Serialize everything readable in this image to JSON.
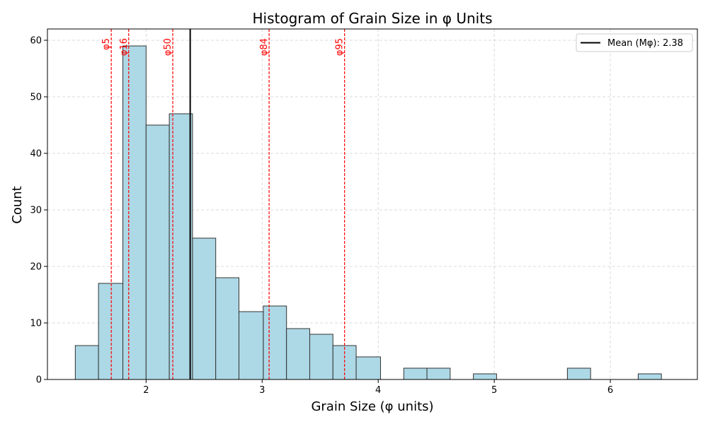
{
  "chart_data": {
    "type": "bar",
    "title": "Histogram of Grain Size in φ Units",
    "xlabel": "Grain Size (φ units)",
    "ylabel": "Count",
    "xlim": [
      1.15,
      6.75
    ],
    "ylim": [
      0,
      62
    ],
    "xticks": [
      2,
      3,
      4,
      5,
      6
    ],
    "yticks": [
      0,
      10,
      20,
      30,
      40,
      50,
      60
    ],
    "grid": true,
    "bar_color": "#add8e6",
    "edge_color": "#333333",
    "bins": [
      {
        "x0": 1.39,
        "x1": 1.59,
        "count": 6
      },
      {
        "x0": 1.59,
        "x1": 1.8,
        "count": 17
      },
      {
        "x0": 1.8,
        "x1": 2.0,
        "count": 59
      },
      {
        "x0": 2.0,
        "x1": 2.2,
        "count": 45
      },
      {
        "x0": 2.2,
        "x1": 2.4,
        "count": 47
      },
      {
        "x0": 2.4,
        "x1": 2.6,
        "count": 25
      },
      {
        "x0": 2.6,
        "x1": 2.8,
        "count": 18
      },
      {
        "x0": 2.8,
        "x1": 3.01,
        "count": 12
      },
      {
        "x0": 3.01,
        "x1": 3.21,
        "count": 13
      },
      {
        "x0": 3.21,
        "x1": 3.41,
        "count": 9
      },
      {
        "x0": 3.41,
        "x1": 3.61,
        "count": 8
      },
      {
        "x0": 3.61,
        "x1": 3.81,
        "count": 6
      },
      {
        "x0": 3.81,
        "x1": 4.02,
        "count": 4
      },
      {
        "x0": 4.02,
        "x1": 4.22,
        "count": 0
      },
      {
        "x0": 4.22,
        "x1": 4.42,
        "count": 2
      },
      {
        "x0": 4.42,
        "x1": 4.62,
        "count": 2
      },
      {
        "x0": 4.62,
        "x1": 4.82,
        "count": 0
      },
      {
        "x0": 4.82,
        "x1": 5.02,
        "count": 1
      },
      {
        "x0": 5.02,
        "x1": 5.23,
        "count": 0
      },
      {
        "x0": 5.23,
        "x1": 5.43,
        "count": 0
      },
      {
        "x0": 5.43,
        "x1": 5.63,
        "count": 0
      },
      {
        "x0": 5.63,
        "x1": 5.83,
        "count": 2
      },
      {
        "x0": 5.83,
        "x1": 6.04,
        "count": 0
      },
      {
        "x0": 6.04,
        "x1": 6.24,
        "count": 0
      },
      {
        "x0": 6.24,
        "x1": 6.44,
        "count": 1
      }
    ],
    "percentiles": [
      {
        "label": "φ5",
        "value": 1.7
      },
      {
        "label": "φ16",
        "value": 1.85
      },
      {
        "label": "φ50",
        "value": 2.23
      },
      {
        "label": "φ84",
        "value": 3.06
      },
      {
        "label": "φ95",
        "value": 3.71
      }
    ],
    "percentile_color": "#ff0000",
    "mean": {
      "value": 2.38,
      "label": "Mean (Mφ): 2.38",
      "color": "#000000"
    },
    "legend_position": "top-right"
  }
}
